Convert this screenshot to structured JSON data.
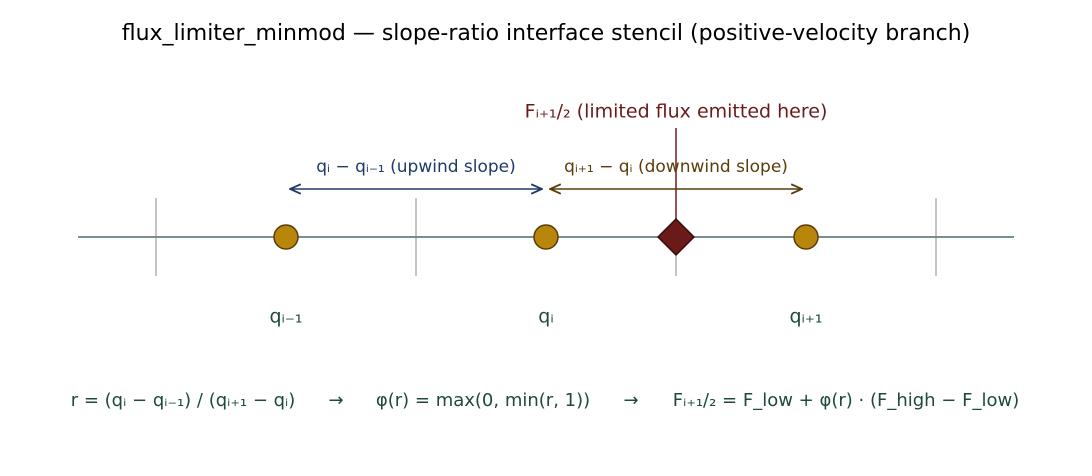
{
  "title": "flux_limiter_minmod — slope-ratio interface stencil (positive-velocity branch)",
  "interface_label": "Fᵢ₊₁/₂  (limited flux emitted here)",
  "slopes": {
    "upwind": "qᵢ − qᵢ₋₁  (upwind slope)",
    "downwind": "qᵢ₊₁ − qᵢ  (downwind slope)"
  },
  "nodes": [
    {
      "label": "qᵢ₋₁"
    },
    {
      "label": "qᵢ"
    },
    {
      "label": "qᵢ₊₁"
    }
  ],
  "formula": [
    "r = (qᵢ − qᵢ₋₁) / (qᵢ₊₁ − qᵢ)",
    "→",
    "φ(r) = max(0, min(r, 1))",
    "→",
    "Fᵢ₊₁/₂ = F_low + φ(r) · (F_high − F_low)"
  ]
}
